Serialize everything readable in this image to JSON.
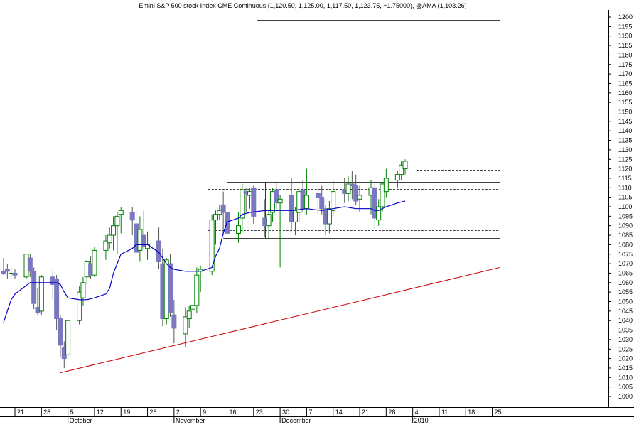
{
  "chart_data": {
    "type": "candlestick",
    "title": "Emini S&P 500 stock Index CME Continuous (1,120.50, 1,125.00, 1,117.50, 1,123.75, +1.75000), @AMA (1,103.26)",
    "ylim": [
      995,
      1202
    ],
    "y_ticks": [
      1000,
      1005,
      1010,
      1015,
      1020,
      1025,
      1030,
      1035,
      1040,
      1045,
      1050,
      1055,
      1060,
      1065,
      1070,
      1075,
      1080,
      1085,
      1090,
      1095,
      1100,
      1105,
      1110,
      1115,
      1120,
      1125,
      1130,
      1135,
      1140,
      1145,
      1150,
      1155,
      1160,
      1165,
      1170,
      1175,
      1180,
      1185,
      1190,
      1195,
      1200
    ],
    "x_ticks": [
      {
        "d": 0,
        "label": "21"
      },
      {
        "d": 7,
        "label": "28"
      },
      {
        "d": 14,
        "label": "5"
      },
      {
        "d": 21,
        "label": "12"
      },
      {
        "d": 28,
        "label": "19"
      },
      {
        "d": 35,
        "label": "26"
      },
      {
        "d": 42,
        "label": "2"
      },
      {
        "d": 49,
        "label": "9"
      },
      {
        "d": 56,
        "label": "16"
      },
      {
        "d": 63,
        "label": "23"
      },
      {
        "d": 70,
        "label": "30"
      },
      {
        "d": 77,
        "label": "7"
      },
      {
        "d": 84,
        "label": "14"
      },
      {
        "d": 91,
        "label": "21"
      },
      {
        "d": 98,
        "label": "28"
      },
      {
        "d": 105,
        "label": "4"
      },
      {
        "d": 112,
        "label": "11"
      },
      {
        "d": 119,
        "label": "18"
      },
      {
        "d": 126,
        "label": "25"
      }
    ],
    "months": [
      {
        "d": 14,
        "label": "October"
      },
      {
        "d": 42,
        "label": "November"
      },
      {
        "d": 70,
        "label": "December"
      },
      {
        "d": 105,
        "label": "2010"
      }
    ],
    "candles": [
      [
        -3,
        1066,
        1073,
        1064,
        1065
      ],
      [
        -2,
        1067,
        1070,
        1062,
        1066
      ],
      [
        -1,
        1065,
        1068,
        1063,
        1065
      ],
      [
        0,
        1065,
        1067,
        1062,
        1064
      ],
      [
        3,
        1063,
        1075,
        1062,
        1075
      ],
      [
        4,
        1073,
        1075,
        1063,
        1066
      ],
      [
        5,
        1066,
        1068,
        1046,
        1049
      ],
      [
        6,
        1047,
        1057,
        1043,
        1044
      ],
      [
        7,
        1045,
        1064,
        1043,
        1063
      ],
      [
        10,
        1063,
        1066,
        1051,
        1059
      ],
      [
        11,
        1062,
        1064,
        1035,
        1041
      ],
      [
        12,
        1041,
        1043,
        1021,
        1027
      ],
      [
        13,
        1026,
        1029,
        1015,
        1020
      ],
      [
        14,
        1022,
        1040,
        1020,
        1040
      ],
      [
        17,
        1040,
        1058,
        1038,
        1055
      ],
      [
        18,
        1052,
        1063,
        1048,
        1060
      ],
      [
        19,
        1063,
        1072,
        1059,
        1071
      ],
      [
        20,
        1070,
        1074,
        1062,
        1064
      ],
      [
        21,
        1064,
        1079,
        1063,
        1077
      ],
      [
        24,
        1077,
        1085,
        1072,
        1082
      ],
      [
        25,
        1081,
        1089,
        1078,
        1085
      ],
      [
        26,
        1085,
        1095,
        1077,
        1090
      ],
      [
        27,
        1090,
        1097,
        1075,
        1095
      ],
      [
        28,
        1096,
        1100,
        1086,
        1098
      ],
      [
        31,
        1097,
        1100,
        1085,
        1093
      ],
      [
        32,
        1091,
        1099,
        1075,
        1076
      ],
      [
        33,
        1077,
        1095,
        1071,
        1088
      ],
      [
        34,
        1085,
        1098,
        1078,
        1079
      ],
      [
        35,
        1078,
        1087,
        1072,
        1080
      ],
      [
        38,
        1082,
        1089,
        1067,
        1071
      ],
      [
        39,
        1070,
        1078,
        1037,
        1041
      ],
      [
        40,
        1041,
        1073,
        1038,
        1072
      ],
      [
        41,
        1070,
        1075,
        1042,
        1044
      ],
      [
        42,
        1043,
        1051,
        1028,
        1036
      ],
      [
        45,
        1033,
        1047,
        1026,
        1042
      ],
      [
        46,
        1041,
        1048,
        1036,
        1045
      ],
      [
        47,
        1046,
        1051,
        1040,
        1048
      ],
      [
        48,
        1048,
        1068,
        1044,
        1064
      ],
      [
        49,
        1066,
        1069,
        1055,
        1067
      ],
      [
        52,
        1066,
        1096,
        1064,
        1093
      ],
      [
        53,
        1093,
        1098,
        1080,
        1096
      ],
      [
        54,
        1096,
        1101,
        1093,
        1098
      ],
      [
        55,
        1101,
        1108,
        1085,
        1097
      ],
      [
        56,
        1097,
        1101,
        1078,
        1086
      ],
      [
        59,
        1086,
        1097,
        1081,
        1090
      ],
      [
        60,
        1094,
        1112,
        1087,
        1109
      ],
      [
        61,
        1108,
        1110,
        1097,
        1107
      ],
      [
        62,
        1106,
        1110,
        1099,
        1108
      ],
      [
        63,
        1110,
        1111,
        1091,
        1095
      ],
      [
        66,
        1094,
        1104,
        1084,
        1090
      ],
      [
        67,
        1090,
        1098,
        1083,
        1096
      ],
      [
        68,
        1097,
        1110,
        1092,
        1108
      ],
      [
        69,
        1109,
        1113,
        1098,
        1102
      ],
      [
        70,
        1102,
        1106,
        1068,
        1104
      ],
      [
        73,
        1106,
        1115,
        1087,
        1092
      ],
      [
        74,
        1092,
        1100,
        1085,
        1098
      ],
      [
        75,
        1097,
        1110,
        1092,
        1108
      ],
      [
        76,
        1109,
        1114,
        1097,
        1099
      ],
      [
        77,
        1099,
        1120,
        1096,
        1106
      ],
      [
        80,
        1107,
        1112,
        1096,
        1105
      ],
      [
        81,
        1105,
        1111,
        1096,
        1099
      ],
      [
        82,
        1099,
        1101,
        1085,
        1091
      ],
      [
        83,
        1091,
        1103,
        1086,
        1099
      ],
      [
        84,
        1098,
        1114,
        1095,
        1108
      ],
      [
        87,
        1109,
        1115,
        1102,
        1107
      ],
      [
        88,
        1107,
        1116,
        1103,
        1112
      ],
      [
        89,
        1112,
        1119,
        1104,
        1111
      ],
      [
        90,
        1111,
        1117,
        1101,
        1103
      ],
      [
        91,
        1104,
        1111,
        1097,
        1106
      ],
      [
        94,
        1106,
        1114,
        1096,
        1110
      ],
      [
        95,
        1110,
        1112,
        1088,
        1094
      ],
      [
        96,
        1093,
        1104,
        1090,
        1100
      ],
      [
        97,
        1100,
        1113,
        1097,
        1112
      ],
      [
        98,
        1108,
        1120,
        1105,
        1115
      ],
      [
        101,
        1114,
        1119,
        1110,
        1117
      ],
      [
        102,
        1117,
        1124,
        1114,
        1122
      ],
      [
        103,
        1120,
        1125,
        1117,
        1124
      ]
    ],
    "ama": [
      [
        -3,
        1039
      ],
      [
        -2,
        1045
      ],
      [
        -1,
        1051
      ],
      [
        0,
        1054
      ],
      [
        2,
        1057
      ],
      [
        4,
        1060
      ],
      [
        7,
        1060
      ],
      [
        10,
        1060
      ],
      [
        11,
        1060
      ],
      [
        12,
        1059
      ],
      [
        13,
        1055
      ],
      [
        14,
        1052
      ],
      [
        17,
        1051
      ],
      [
        19,
        1051
      ],
      [
        21,
        1052
      ],
      [
        24,
        1054
      ],
      [
        25,
        1057
      ],
      [
        26,
        1065
      ],
      [
        27,
        1070
      ],
      [
        28,
        1075
      ],
      [
        31,
        1078
      ],
      [
        32,
        1080
      ],
      [
        34,
        1080
      ],
      [
        35,
        1080
      ],
      [
        38,
        1076
      ],
      [
        39,
        1073
      ],
      [
        40,
        1070
      ],
      [
        41,
        1068
      ],
      [
        42,
        1067
      ],
      [
        45,
        1066
      ],
      [
        48,
        1066
      ],
      [
        49,
        1066
      ],
      [
        52,
        1068
      ],
      [
        53,
        1074
      ],
      [
        54,
        1078
      ],
      [
        55,
        1086
      ],
      [
        56,
        1092
      ],
      [
        59,
        1094
      ],
      [
        60,
        1096
      ],
      [
        62,
        1097
      ],
      [
        66,
        1098
      ],
      [
        70,
        1098
      ],
      [
        73,
        1098
      ],
      [
        77,
        1099
      ],
      [
        81,
        1098
      ],
      [
        84,
        1099
      ],
      [
        87,
        1100
      ],
      [
        90,
        1099
      ],
      [
        94,
        1099
      ],
      [
        95,
        1098
      ],
      [
        96,
        1098
      ],
      [
        98,
        1100
      ],
      [
        101,
        1102
      ],
      [
        103,
        1103
      ]
    ],
    "trendline": {
      "from": [
        12,
        1012.5
      ],
      "to": [
        128,
        1068
      ]
    },
    "h_lines": [
      {
        "y": 1198.5,
        "from": 64,
        "to": 128,
        "style": "solid"
      },
      {
        "y": 1119.5,
        "from": 106,
        "to": 128,
        "style": "dashed"
      },
      {
        "y": 1113,
        "from": 56,
        "to": 128,
        "style": "solid"
      },
      {
        "y": 1109.5,
        "from": 51,
        "to": 128,
        "style": "dashed"
      },
      {
        "y": 1087.5,
        "from": 51,
        "to": 128,
        "style": "dashed"
      },
      {
        "y": 1083.5,
        "from": 55,
        "to": 128,
        "style": "solid"
      }
    ],
    "v_lines": [
      {
        "d": 76,
        "y1": 1113,
        "y2": 1198.5
      },
      {
        "d": 66,
        "y1": 1083.5,
        "y2": 1113
      }
    ],
    "colors": {
      "up_candle": "#008000",
      "down_candle": "#7a78c0",
      "ama_line": "#0000c8",
      "trendline": "#cc0000",
      "guide_lines": "#000000"
    }
  }
}
